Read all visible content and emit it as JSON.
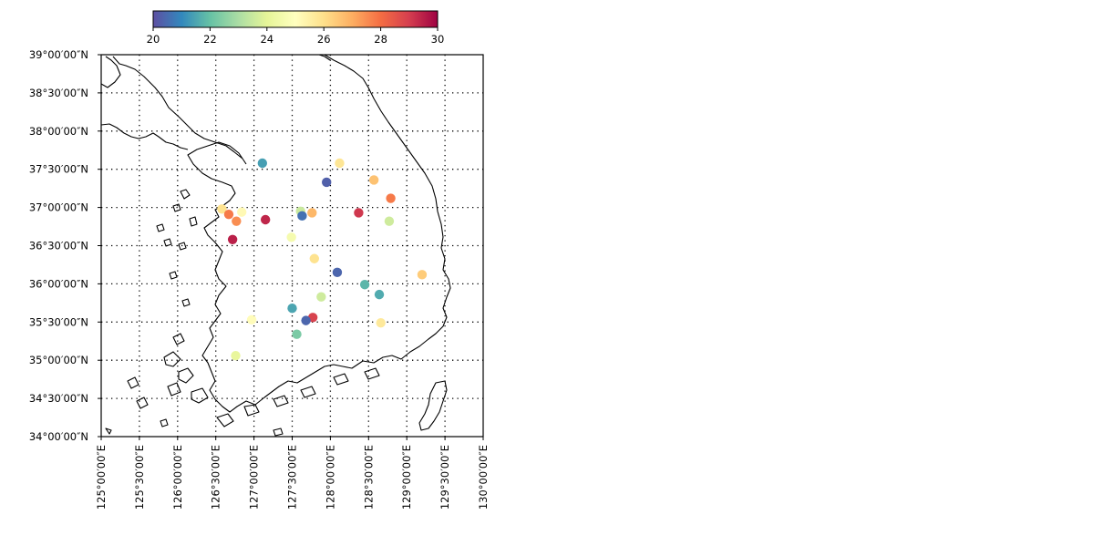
{
  "chart_data": {
    "type": "scatter",
    "subtype": "geographic-station-map",
    "region": "Korean Peninsula",
    "x_range_deg": [
      125.0,
      130.0
    ],
    "y_range_deg": [
      34.0,
      39.0
    ],
    "x_ticks": [
      125.0,
      125.5,
      126.0,
      126.5,
      127.0,
      127.5,
      128.0,
      128.5,
      129.0,
      129.5,
      130.0
    ],
    "x_tick_labels": [
      "125°00′00″E",
      "125°30′00″E",
      "126°00′00″E",
      "126°30′00″E",
      "127°00′00″E",
      "127°30′00″E",
      "128°00′00″E",
      "128°30′00″E",
      "129°00′00″E",
      "129°30′00″E",
      "130°00′00″E"
    ],
    "y_ticks": [
      34.0,
      34.5,
      35.0,
      35.5,
      36.0,
      36.5,
      37.0,
      37.5,
      38.0,
      38.5,
      39.0
    ],
    "y_tick_labels": [
      "34°00′00″N",
      "34°30′00″N",
      "35°00′00″N",
      "35°30′00″N",
      "36°00′00″N",
      "36°30′00″N",
      "37°00′00″N",
      "37°30′00″N",
      "38°00′00″N",
      "38°30′00″N",
      "39°00′00″N"
    ],
    "grid": "dotted",
    "colorbar": {
      "placement": "top",
      "colormap": "Spectral_r",
      "vmin": 20,
      "vmax": 30,
      "ticks": [
        20,
        22,
        24,
        26,
        28,
        30
      ],
      "tick_labels": [
        "20",
        "22",
        "24",
        "26",
        "28",
        "30"
      ],
      "stops": [
        "#5e4fa2",
        "#3288bd",
        "#66c2a5",
        "#abdda4",
        "#e6f598",
        "#ffffbf",
        "#fee08b",
        "#fdae61",
        "#f46d43",
        "#d53e4f",
        "#9e0142"
      ]
    },
    "points": [
      {
        "lon": 127.11,
        "lat": 37.58,
        "value": 21.4
      },
      {
        "lon": 128.12,
        "lat": 37.58,
        "value": 25.8
      },
      {
        "lon": 127.95,
        "lat": 37.33,
        "value": 20.3
      },
      {
        "lon": 128.57,
        "lat": 37.36,
        "value": 26.6
      },
      {
        "lon": 128.79,
        "lat": 37.12,
        "value": 27.8
      },
      {
        "lon": 126.58,
        "lat": 36.98,
        "value": 25.9
      },
      {
        "lon": 126.84,
        "lat": 36.94,
        "value": 25.2
      },
      {
        "lon": 126.67,
        "lat": 36.91,
        "value": 27.8
      },
      {
        "lon": 126.77,
        "lat": 36.82,
        "value": 27.5
      },
      {
        "lon": 127.15,
        "lat": 36.84,
        "value": 29.4
      },
      {
        "lon": 127.61,
        "lat": 36.95,
        "value": 23.5
      },
      {
        "lon": 127.63,
        "lat": 36.89,
        "value": 20.6
      },
      {
        "lon": 127.76,
        "lat": 36.93,
        "value": 26.8
      },
      {
        "lon": 128.37,
        "lat": 36.93,
        "value": 29.1
      },
      {
        "lon": 128.77,
        "lat": 36.82,
        "value": 23.6
      },
      {
        "lon": 126.72,
        "lat": 36.58,
        "value": 29.5
      },
      {
        "lon": 127.49,
        "lat": 36.61,
        "value": 24.6
      },
      {
        "lon": 127.79,
        "lat": 36.33,
        "value": 25.9
      },
      {
        "lon": 128.09,
        "lat": 36.15,
        "value": 20.4
      },
      {
        "lon": 129.2,
        "lat": 36.12,
        "value": 26.4
      },
      {
        "lon": 128.45,
        "lat": 35.99,
        "value": 21.8
      },
      {
        "lon": 127.88,
        "lat": 35.83,
        "value": 23.6
      },
      {
        "lon": 128.64,
        "lat": 35.86,
        "value": 21.6
      },
      {
        "lon": 127.5,
        "lat": 35.68,
        "value": 21.5
      },
      {
        "lon": 127.77,
        "lat": 35.56,
        "value": 28.9
      },
      {
        "lon": 127.68,
        "lat": 35.52,
        "value": 20.4
      },
      {
        "lon": 126.97,
        "lat": 35.53,
        "value": 25.1
      },
      {
        "lon": 128.66,
        "lat": 35.49,
        "value": 25.7
      },
      {
        "lon": 127.56,
        "lat": 35.34,
        "value": 22.3
      },
      {
        "lon": 126.76,
        "lat": 35.06,
        "value": 24.1
      }
    ]
  }
}
